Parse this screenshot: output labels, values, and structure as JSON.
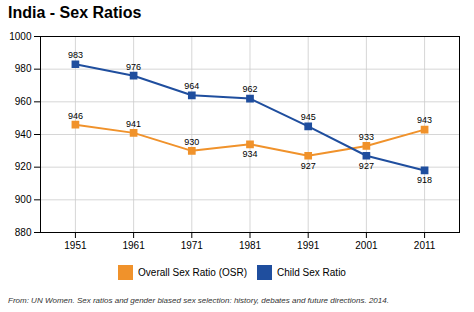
{
  "chart_data": {
    "type": "line",
    "title": "India - Sex Ratios",
    "caption": "From: UN Women. Sex ratios and gender biased sex selection: history, debates and future directions. 2014.",
    "x": [
      1951,
      1961,
      1971,
      1981,
      1991,
      2001,
      2011
    ],
    "series": [
      {
        "name": "Overall Sex Ratio (OSR)",
        "color": "#f0922b",
        "marker": "square",
        "values": [
          946,
          941,
          930,
          934,
          927,
          933,
          943
        ]
      },
      {
        "name": "Child Sex Ratio",
        "color": "#1f4e9e",
        "marker": "square",
        "values": [
          983,
          976,
          964,
          962,
          945,
          927,
          918
        ]
      }
    ],
    "xlim": [
      1945,
      2017
    ],
    "xticks": [
      1951,
      1961,
      1971,
      1981,
      1991,
      2001,
      2011
    ],
    "ylim": [
      880,
      1000
    ],
    "yticks": [
      880,
      900,
      920,
      940,
      960,
      980,
      1000
    ],
    "grid": true,
    "data_labels": true,
    "legend": "bottom"
  }
}
